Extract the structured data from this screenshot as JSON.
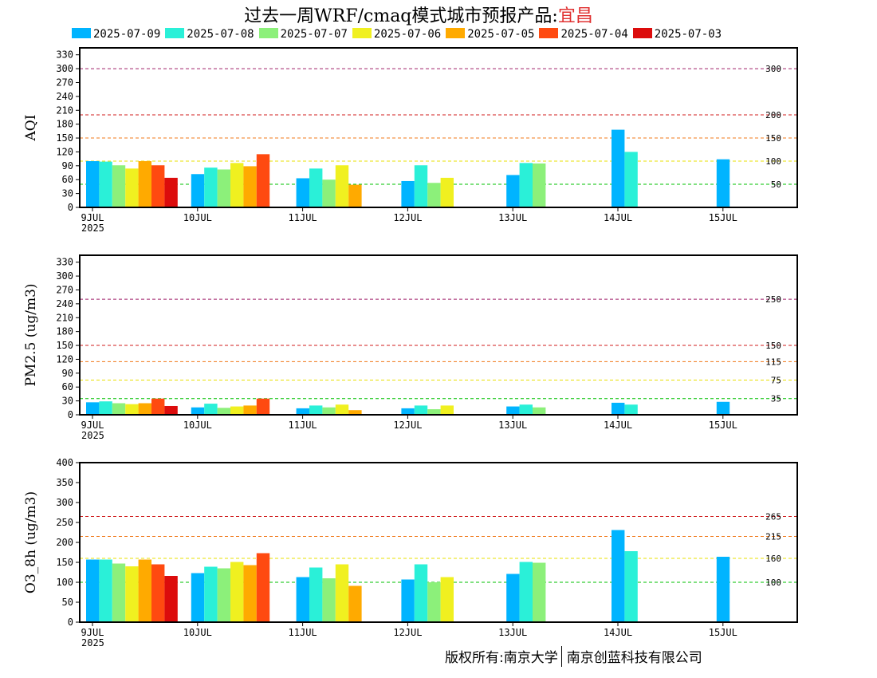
{
  "title": {
    "prefix": "过去一周WRF/cmaq模式城市预报产品:",
    "city": "宜昌"
  },
  "legend": [
    {
      "label": "2025-07-09",
      "color": "#00b4ff"
    },
    {
      "label": "2025-07-08",
      "color": "#2af0d8"
    },
    {
      "label": "2025-07-07",
      "color": "#8cf07a"
    },
    {
      "label": "2025-07-06",
      "color": "#f0f020"
    },
    {
      "label": "2025-07-05",
      "color": "#ffaa00"
    },
    {
      "label": "2025-07-04",
      "color": "#ff4a10"
    },
    {
      "label": "2025-07-03",
      "color": "#dc0c0c"
    }
  ],
  "x_tick_labels": [
    "9JUL",
    "10JUL",
    "11JUL",
    "12JUL",
    "13JUL",
    "14JUL",
    "15JUL"
  ],
  "x_year_label": "2025",
  "footer": {
    "left": "版权所有:南京大学",
    "right": "南京创蓝科技有限公司"
  },
  "chart_data": [
    {
      "type": "bar",
      "ylabel": "AQI",
      "ylim": [
        0,
        345
      ],
      "yticks": [
        0,
        30,
        60,
        90,
        120,
        150,
        180,
        210,
        240,
        270,
        300,
        330
      ],
      "categories": [
        "9JUL",
        "10JUL",
        "11JUL",
        "12JUL",
        "13JUL",
        "14JUL",
        "15JUL"
      ],
      "thresholds": [
        {
          "value": 300,
          "label": "300",
          "color": "#a0206a"
        },
        {
          "value": 200,
          "label": "200",
          "color": "#d01c1c"
        },
        {
          "value": 150,
          "label": "150",
          "color": "#f07818"
        },
        {
          "value": 100,
          "label": "100",
          "color": "#e8e000"
        },
        {
          "value": 50,
          "label": "50",
          "color": "#00c000"
        }
      ],
      "series": [
        {
          "name": "2025-07-09",
          "values": [
            100,
            72,
            63,
            57,
            70,
            168,
            104
          ]
        },
        {
          "name": "2025-07-08",
          "values": [
            99,
            86,
            84,
            91,
            96,
            120,
            null
          ]
        },
        {
          "name": "2025-07-07",
          "values": [
            91,
            82,
            60,
            53,
            95,
            null,
            null
          ]
        },
        {
          "name": "2025-07-06",
          "values": [
            84,
            96,
            91,
            64,
            null,
            null,
            null
          ]
        },
        {
          "name": "2025-07-05",
          "values": [
            100,
            89,
            49,
            null,
            null,
            null,
            null
          ]
        },
        {
          "name": "2025-07-04",
          "values": [
            91,
            115,
            null,
            null,
            null,
            null,
            null
          ]
        },
        {
          "name": "2025-07-03",
          "values": [
            64,
            null,
            null,
            null,
            null,
            null,
            null
          ]
        }
      ]
    },
    {
      "type": "bar",
      "ylabel": "PM2.5 (ug/m3)",
      "ylim": [
        0,
        345
      ],
      "yticks": [
        0,
        30,
        60,
        90,
        120,
        150,
        180,
        210,
        240,
        270,
        300,
        330
      ],
      "categories": [
        "9JUL",
        "10JUL",
        "11JUL",
        "12JUL",
        "13JUL",
        "14JUL",
        "15JUL"
      ],
      "thresholds": [
        {
          "value": 250,
          "label": "250",
          "color": "#a0206a"
        },
        {
          "value": 150,
          "label": "150",
          "color": "#d01c1c"
        },
        {
          "value": 115,
          "label": "115",
          "color": "#f07818"
        },
        {
          "value": 75,
          "label": "75",
          "color": "#e8e000"
        },
        {
          "value": 35,
          "label": "35",
          "color": "#00c000"
        }
      ],
      "series": [
        {
          "name": "2025-07-09",
          "values": [
            27,
            16,
            14,
            14,
            18,
            26,
            28
          ]
        },
        {
          "name": "2025-07-08",
          "values": [
            29,
            24,
            20,
            20,
            22,
            22,
            null
          ]
        },
        {
          "name": "2025-07-07",
          "values": [
            25,
            15,
            16,
            12,
            16,
            null,
            null
          ]
        },
        {
          "name": "2025-07-06",
          "values": [
            23,
            18,
            22,
            20,
            null,
            null,
            null
          ]
        },
        {
          "name": "2025-07-05",
          "values": [
            25,
            20,
            10,
            null,
            null,
            null,
            null
          ]
        },
        {
          "name": "2025-07-04",
          "values": [
            35,
            35,
            null,
            null,
            null,
            null,
            null
          ]
        },
        {
          "name": "2025-07-03",
          "values": [
            19,
            null,
            null,
            null,
            null,
            null,
            null
          ]
        }
      ]
    },
    {
      "type": "bar",
      "ylabel": "O3_8h (ug/m3)",
      "ylim": [
        0,
        400
      ],
      "yticks": [
        0,
        50,
        100,
        150,
        200,
        250,
        300,
        350,
        400
      ],
      "categories": [
        "9JUL",
        "10JUL",
        "11JUL",
        "12JUL",
        "13JUL",
        "14JUL",
        "15JUL"
      ],
      "thresholds": [
        {
          "value": 265,
          "label": "265",
          "color": "#d01c1c"
        },
        {
          "value": 215,
          "label": "215",
          "color": "#f07818"
        },
        {
          "value": 160,
          "label": "160",
          "color": "#e8e000"
        },
        {
          "value": 100,
          "label": "100",
          "color": "#00c000"
        }
      ],
      "series": [
        {
          "name": "2025-07-09",
          "values": [
            157,
            123,
            113,
            107,
            121,
            231,
            164
          ]
        },
        {
          "name": "2025-07-08",
          "values": [
            157,
            139,
            137,
            145,
            151,
            178,
            null
          ]
        },
        {
          "name": "2025-07-07",
          "values": [
            147,
            135,
            110,
            100,
            149,
            null,
            null
          ]
        },
        {
          "name": "2025-07-06",
          "values": [
            140,
            151,
            145,
            113,
            null,
            null,
            null
          ]
        },
        {
          "name": "2025-07-05",
          "values": [
            157,
            143,
            91,
            null,
            null,
            null,
            null
          ]
        },
        {
          "name": "2025-07-04",
          "values": [
            145,
            173,
            null,
            null,
            null,
            null,
            null
          ]
        },
        {
          "name": "2025-07-03",
          "values": [
            116,
            null,
            null,
            null,
            null,
            null,
            null
          ]
        }
      ]
    }
  ]
}
